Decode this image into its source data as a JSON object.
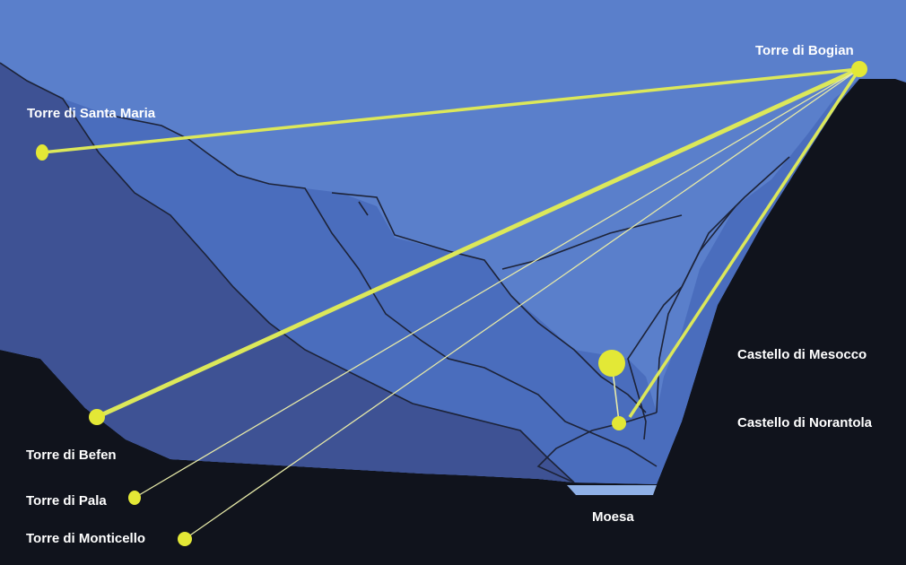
{
  "diagram": {
    "colors": {
      "sky": "#5a7fcb",
      "valley_fill": "#4a6dbd",
      "left_slope": "#3e5294",
      "dark_terrain": "#10131c",
      "river": "#8fb0e6",
      "ridge_lines": "#1d2338",
      "sight_line": "#dce85a",
      "sight_line_thin": "#e6e9a8",
      "tower_dot": "#e3e836",
      "label_text": "#ffffff"
    },
    "labels": {
      "bogian": "Torre di Bogian",
      "santa_maria": "Torre di Santa Maria",
      "mesocco": "Castello di Mesocco",
      "norantola": "Castello di Norantola",
      "befen": "Torre di Befen",
      "pala": "Torre di Pala",
      "monticello": "Torre di Monticello",
      "moesa": "Moesa"
    }
  }
}
